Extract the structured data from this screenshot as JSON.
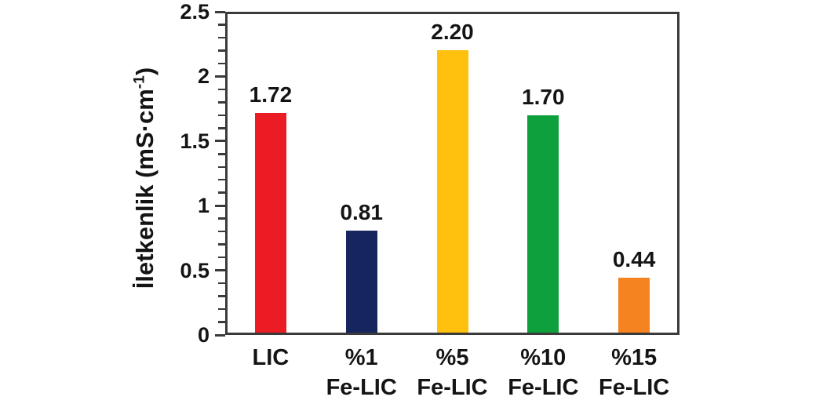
{
  "figure": {
    "background_color": "#ffffff",
    "axis_color": "#3a3a3a",
    "text_color": "#141414"
  },
  "chart_data": {
    "type": "bar",
    "title": "",
    "xlabel": "",
    "ylabel": "İletkenlik (mS·cm⁻¹)",
    "ylabel_parts": {
      "prefix": "İletkenlik (mS·cm",
      "sup": "-1",
      "suffix": ")"
    },
    "categories": [
      "LIC",
      "%1 Fe-LIC",
      "%5 Fe-LIC",
      "%10 Fe-LIC",
      "%15 Fe-LIC"
    ],
    "categories_line1": [
      "LIC",
      "%1",
      "%5",
      "%10",
      "%15"
    ],
    "categories_line2": [
      "",
      "Fe-LIC",
      "Fe-LIC",
      "Fe-LIC",
      "Fe-LIC"
    ],
    "values": [
      1.72,
      0.81,
      2.2,
      1.7,
      0.44
    ],
    "value_labels": [
      "1.72",
      "0.81",
      "2.20",
      "1.70",
      "0.44"
    ],
    "bar_colors": [
      "#ec1c24",
      "#17255f",
      "#ffc10d",
      "#0ea03c",
      "#f5831f"
    ],
    "ylim": [
      0,
      2.5
    ],
    "y_major_ticks": [
      0,
      0.5,
      1,
      1.5,
      2,
      2.5
    ],
    "y_tick_labels": [
      "0",
      "0.5",
      "1",
      "1.5",
      "2",
      "2.5"
    ],
    "y_minor_step": 0.1,
    "grid": false,
    "legend": null
  }
}
